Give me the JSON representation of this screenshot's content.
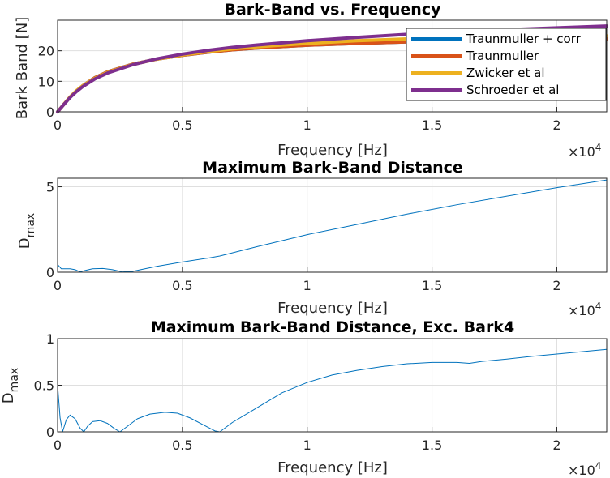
{
  "chart_data": [
    {
      "type": "line",
      "title": "Bark-Band vs. Frequency",
      "xlabel": "Frequency [Hz]",
      "ylabel": "Bark Band [N]",
      "x_multiplier_label": "×10",
      "x_multiplier_exp": "4",
      "xlim": [
        0,
        22000
      ],
      "ylim": [
        0,
        30
      ],
      "xticks": [
        0,
        5000,
        10000,
        15000,
        20000
      ],
      "xtick_labels": [
        "0",
        "0.5",
        "1",
        "1.5",
        "2"
      ],
      "yticks": [
        0,
        10,
        20
      ],
      "ytick_labels": [
        "0",
        "10",
        "20"
      ],
      "grid": true,
      "legend": "top-right",
      "series": [
        {
          "name": "Traunmuller + corr",
          "color": "#0072BD",
          "x": [
            0,
            250,
            500,
            750,
            1000,
            1500,
            2000,
            3000,
            4000,
            5000,
            6000,
            7000,
            8000,
            10000,
            12000,
            14000,
            16000,
            18000,
            20000,
            22000
          ],
          "y": [
            0,
            2.4,
            4.8,
            6.8,
            8.5,
            11.2,
            13.1,
            15.6,
            17.3,
            18.5,
            19.5,
            20.3,
            20.9,
            21.8,
            22.4,
            22.9,
            23.2,
            23.5,
            23.7,
            23.9
          ]
        },
        {
          "name": "Traunmuller",
          "color": "#D95319",
          "x": [
            0,
            250,
            500,
            750,
            1000,
            1500,
            2000,
            3000,
            4000,
            5000,
            6000,
            7000,
            8000,
            10000,
            12000,
            14000,
            16000,
            18000,
            20000,
            22000
          ],
          "y": [
            0,
            2.4,
            4.8,
            6.8,
            8.5,
            11.2,
            13.1,
            15.6,
            17.3,
            18.5,
            19.5,
            20.3,
            20.9,
            21.8,
            22.4,
            22.9,
            23.2,
            23.5,
            23.7,
            23.9
          ]
        },
        {
          "name": "Zwicker et al",
          "color": "#EDB120",
          "x": [
            0,
            250,
            500,
            750,
            1000,
            1500,
            2000,
            3000,
            4000,
            5000,
            6000,
            7000,
            8000,
            10000,
            12000,
            14000,
            16000,
            18000,
            20000,
            22000
          ],
          "y": [
            0,
            2.5,
            4.9,
            6.9,
            8.5,
            11.0,
            12.9,
            15.5,
            17.3,
            18.6,
            19.7,
            20.6,
            21.3,
            22.4,
            23.3,
            23.9,
            24.3,
            24.6,
            24.8,
            24.9
          ]
        },
        {
          "name": "Schroeder et al",
          "color": "#7E2F8E",
          "x": [
            0,
            250,
            500,
            750,
            1000,
            1500,
            2000,
            3000,
            4000,
            5000,
            6000,
            7000,
            8000,
            10000,
            12000,
            14000,
            16000,
            18000,
            20000,
            22000
          ],
          "y": [
            0,
            2.4,
            4.7,
            6.6,
            8.2,
            10.8,
            12.7,
            15.4,
            17.4,
            18.9,
            20.1,
            21.1,
            21.9,
            23.3,
            24.4,
            25.4,
            26.2,
            26.9,
            27.5,
            28.1
          ]
        }
      ]
    },
    {
      "type": "line",
      "title": "Maximum Bark-Band Distance",
      "xlabel": "Frequency [Hz]",
      "ylabel_main": "D",
      "ylabel_sub": "max",
      "x_multiplier_label": "×10",
      "x_multiplier_exp": "4",
      "xlim": [
        0,
        22000
      ],
      "ylim": [
        0,
        5.5
      ],
      "xticks": [
        0,
        5000,
        10000,
        15000,
        20000
      ],
      "xtick_labels": [
        "0",
        "0.5",
        "1",
        "1.5",
        "2"
      ],
      "yticks": [
        0,
        5
      ],
      "ytick_labels": [
        "0",
        "5"
      ],
      "grid": true,
      "series": [
        {
          "color": "#0072BD",
          "x": [
            0,
            150,
            300,
            500,
            700,
            900,
            1100,
            1400,
            1800,
            2200,
            2600,
            3000,
            3500,
            4000,
            5000,
            6000,
            6500,
            8000,
            10000,
            12000,
            14000,
            16000,
            18000,
            20000,
            22000
          ],
          "y": [
            0.45,
            0.2,
            0.2,
            0.2,
            0.15,
            0.02,
            0.1,
            0.2,
            0.22,
            0.15,
            0.02,
            0.05,
            0.2,
            0.35,
            0.6,
            0.82,
            0.95,
            1.5,
            2.2,
            2.8,
            3.4,
            3.95,
            4.45,
            4.95,
            5.4
          ]
        }
      ]
    },
    {
      "type": "line",
      "title": "Maximum Bark-Band Distance, Exc. Bark4",
      "xlabel": "Frequency [Hz]",
      "ylabel_main": "D",
      "ylabel_sub": "max",
      "x_multiplier_label": "×10",
      "x_multiplier_exp": "4",
      "xlim": [
        0,
        22000
      ],
      "ylim": [
        0,
        1
      ],
      "xticks": [
        0,
        5000,
        10000,
        15000,
        20000
      ],
      "xtick_labels": [
        "0",
        "0.5",
        "1",
        "1.5",
        "2"
      ],
      "yticks": [
        0,
        0.5,
        1
      ],
      "ytick_labels": [
        "0",
        "0.5",
        "1"
      ],
      "grid": true,
      "series": [
        {
          "color": "#0072BD",
          "x": [
            0,
            100,
            200,
            350,
            500,
            700,
            900,
            1050,
            1200,
            1400,
            1700,
            2000,
            2300,
            2500,
            2800,
            3200,
            3700,
            4300,
            4800,
            5300,
            5800,
            6300,
            6500,
            7000,
            8000,
            9000,
            10000,
            11000,
            12000,
            13000,
            14000,
            15000,
            16000,
            16500,
            17000,
            18000,
            19000,
            20000,
            21000,
            22000
          ],
          "y": [
            0.5,
            0.15,
            0.0,
            0.13,
            0.18,
            0.14,
            0.04,
            0.0,
            0.06,
            0.11,
            0.12,
            0.09,
            0.03,
            0.0,
            0.06,
            0.14,
            0.19,
            0.21,
            0.2,
            0.15,
            0.08,
            0.01,
            0.0,
            0.1,
            0.26,
            0.42,
            0.53,
            0.61,
            0.66,
            0.7,
            0.73,
            0.745,
            0.745,
            0.735,
            0.755,
            0.78,
            0.81,
            0.835,
            0.86,
            0.885
          ]
        }
      ]
    }
  ]
}
